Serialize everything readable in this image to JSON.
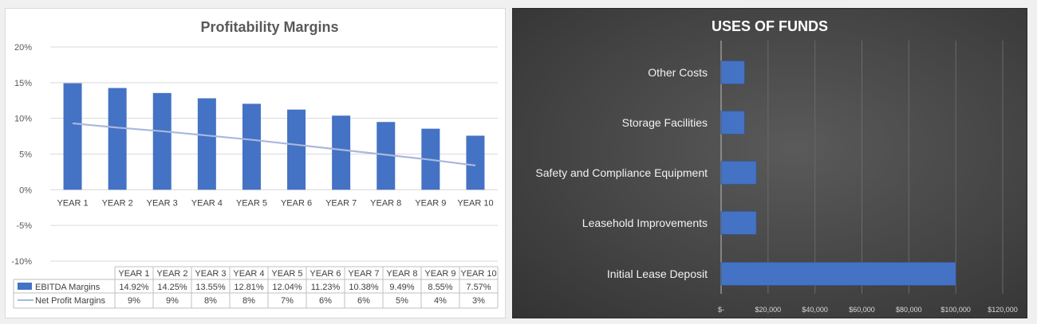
{
  "chart_data": [
    {
      "type": "bar",
      "title": "Profitability Margins",
      "categories": [
        "YEAR 1",
        "YEAR 2",
        "YEAR 3",
        "YEAR 4",
        "YEAR 5",
        "YEAR 6",
        "YEAR 7",
        "YEAR 8",
        "YEAR 9",
        "YEAR 10"
      ],
      "y_ticks": [
        "20%",
        "15%",
        "10%",
        "5%",
        "0%",
        "-5%",
        "-10%"
      ],
      "ylim": [
        -10,
        20
      ],
      "series": [
        {
          "name": "EBITDA Margins",
          "kind": "bar",
          "color": "#4472c4",
          "values": [
            14.92,
            14.25,
            13.55,
            12.81,
            12.04,
            11.23,
            10.38,
            9.49,
            8.55,
            7.57
          ],
          "labels": [
            "14.92%",
            "14.25%",
            "13.55%",
            "12.81%",
            "12.04%",
            "11.23%",
            "10.38%",
            "9.49%",
            "8.55%",
            "7.57%"
          ]
        },
        {
          "name": "Net Profit Margins",
          "kind": "line",
          "color": "#a9b8dc",
          "values": [
            9.3,
            8.7,
            8.2,
            7.6,
            7.0,
            6.3,
            5.6,
            4.9,
            4.2,
            3.4
          ],
          "labels": [
            "9%",
            "9%",
            "8%",
            "8%",
            "7%",
            "6%",
            "6%",
            "5%",
            "4%",
            "3%"
          ]
        }
      ],
      "grid": true,
      "legend": "data-table"
    },
    {
      "type": "bar",
      "orientation": "horizontal",
      "title": "USES OF FUNDS",
      "categories": [
        "Other Costs",
        "Storage Facilities",
        "Safety and Compliance Equipment",
        "Leasehold Improvements",
        "Initial Lease Deposit"
      ],
      "values": [
        10000,
        10000,
        15000,
        15000,
        100000
      ],
      "color": "#4472c4",
      "x_ticks": [
        "$-",
        "$20,000",
        "$40,000",
        "$60,000",
        "$80,000",
        "$100,000",
        "$120,000"
      ],
      "xlim": [
        0,
        120000
      ],
      "grid": true
    }
  ]
}
